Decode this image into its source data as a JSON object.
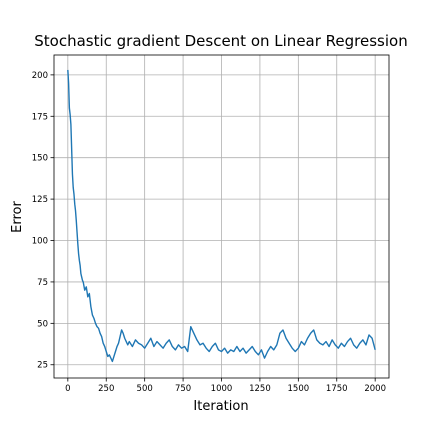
{
  "chart_data": {
    "type": "line",
    "title": "Stochastic gradient Descent on Linear Regression",
    "xlabel": "Iteration",
    "ylabel": "Error",
    "xlim": [
      -90,
      2090
    ],
    "ylim": [
      17,
      212
    ],
    "x_ticks": [
      0,
      250,
      500,
      750,
      1000,
      1250,
      1500,
      1750,
      2000
    ],
    "y_ticks": [
      25,
      50,
      75,
      100,
      125,
      150,
      175,
      200
    ],
    "grid": true,
    "line_color": "#1f77b4",
    "series": [
      {
        "x": [
          0,
          5,
          10,
          15,
          20,
          25,
          30,
          35,
          40,
          45,
          50,
          55,
          60,
          65,
          70,
          75,
          80,
          85,
          90,
          95,
          100,
          110,
          120,
          130,
          140,
          150,
          160,
          170,
          180,
          190,
          200,
          210,
          220,
          230,
          240,
          250,
          260,
          270,
          280,
          290,
          300,
          310,
          320,
          330,
          340,
          350,
          360,
          370,
          380,
          390,
          400,
          420,
          440,
          460,
          480,
          500,
          520,
          540,
          560,
          580,
          600,
          620,
          640,
          660,
          680,
          700,
          720,
          740,
          760,
          780,
          800,
          820,
          840,
          860,
          880,
          900,
          920,
          940,
          960,
          980,
          1000,
          1020,
          1040,
          1060,
          1080,
          1100,
          1120,
          1140,
          1160,
          1180,
          1200,
          1220,
          1240,
          1260,
          1280,
          1300,
          1320,
          1340,
          1360,
          1380,
          1400,
          1420,
          1440,
          1460,
          1480,
          1500,
          1520,
          1540,
          1560,
          1580,
          1600,
          1620,
          1640,
          1660,
          1680,
          1700,
          1720,
          1740,
          1760,
          1780,
          1800,
          1820,
          1840,
          1860,
          1880,
          1900,
          1920,
          1940,
          1960,
          1980,
          2000
        ],
        "values": [
          203,
          195,
          180,
          176,
          170,
          155,
          140,
          132,
          128,
          122,
          118,
          112,
          105,
          98,
          92,
          88,
          85,
          80,
          78,
          76,
          75,
          70,
          72,
          66,
          68,
          60,
          55,
          53,
          50,
          48,
          47,
          44,
          42,
          38,
          36,
          33,
          30,
          31,
          29,
          27,
          30,
          33,
          36,
          38,
          42,
          46,
          44,
          41,
          39,
          37,
          39,
          36,
          40,
          38,
          37,
          35,
          38,
          41,
          36,
          39,
          37,
          35,
          38,
          40,
          36,
          34,
          37,
          35,
          36,
          33,
          48,
          44,
          40,
          37,
          38,
          35,
          33,
          36,
          38,
          34,
          33,
          35,
          32,
          34,
          33,
          36,
          33,
          35,
          32,
          34,
          36,
          33,
          31,
          34,
          29,
          33,
          36,
          34,
          37,
          44,
          46,
          41,
          38,
          35,
          33,
          35,
          39,
          37,
          41,
          44,
          46,
          40,
          38,
          37,
          39,
          36,
          40,
          37,
          35,
          38,
          36,
          39,
          41,
          37,
          35,
          38,
          40,
          37,
          43,
          41,
          34
        ]
      }
    ]
  }
}
